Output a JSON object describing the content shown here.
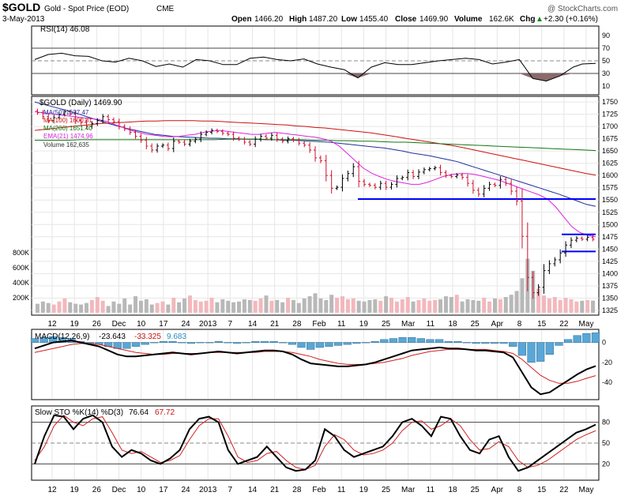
{
  "header": {
    "symbol": "$GOLD",
    "name": "Gold - Spot Price (EOD)",
    "exchange": "CME",
    "date": "3-May-2013",
    "watermark": "@ StockCharts.com",
    "open_label": "Open",
    "open": "1466.20",
    "high_label": "High",
    "high": "1487.20",
    "low_label": "Low",
    "low": "1455.40",
    "close_label": "Close",
    "close": "1469.90",
    "volume_label": "Volume",
    "volume": "162.6K",
    "chg_label": "Chg",
    "chg": "+2.30 (+0.16%)",
    "chg_arrow": "▲"
  },
  "x_axis_labels": [
    "12",
    "19",
    "26",
    "Dec",
    "10",
    "17",
    "24",
    "2013",
    "7",
    "14",
    "21",
    "28",
    "Feb",
    "11",
    "19",
    "25",
    "Mar",
    "11",
    "18",
    "25",
    "Apr",
    "8",
    "15",
    "22",
    "May"
  ],
  "chart_data": [
    {
      "type": "line",
      "panel": "rsi",
      "legend": "RSI(14) 46.08",
      "yticks": [
        10,
        30,
        50,
        70,
        90
      ],
      "ylim": [
        0,
        100
      ],
      "reference_lines": [
        30,
        50,
        70
      ],
      "x": [
        0,
        3,
        6,
        9,
        12,
        15,
        18,
        21,
        24,
        27,
        30,
        33,
        36,
        39,
        42,
        45,
        48,
        51,
        54,
        57,
        60,
        63,
        66,
        69,
        72,
        75,
        78,
        81,
        84,
        87,
        90,
        93,
        96,
        99,
        102,
        105,
        108,
        111,
        114,
        117,
        120,
        122,
        125
      ],
      "values": [
        52,
        60,
        62,
        58,
        57,
        50,
        48,
        54,
        50,
        41,
        45,
        40,
        52,
        50,
        44,
        44,
        54,
        56,
        52,
        50,
        53,
        45,
        40,
        36,
        23,
        40,
        47,
        44,
        44,
        47,
        50,
        52,
        54,
        52,
        45,
        48,
        52,
        22,
        18,
        26,
        40,
        45,
        46
      ]
    },
    {
      "type": "candlestick",
      "panel": "price",
      "legend": "$GOLD (Daily) 1469.90",
      "ylim": [
        1320,
        1755
      ],
      "yticks": [
        1325,
        1350,
        1375,
        1400,
        1425,
        1450,
        1475,
        1500,
        1525,
        1550,
        1575,
        1600,
        1625,
        1650,
        1675,
        1700,
        1725,
        1750
      ],
      "close": [
        1728,
        1720,
        1712,
        1718,
        1725,
        1730,
        1726,
        1712,
        1708,
        1700,
        1706,
        1712,
        1720,
        1714,
        1710,
        1700,
        1695,
        1688,
        1680,
        1672,
        1660,
        1652,
        1660,
        1662,
        1655,
        1670,
        1668,
        1664,
        1670,
        1674,
        1684,
        1688,
        1692,
        1690,
        1686,
        1684,
        1676,
        1674,
        1668,
        1664,
        1674,
        1680,
        1676,
        1682,
        1674,
        1670,
        1675,
        1672,
        1666,
        1662,
        1652,
        1636,
        1630,
        1600,
        1574,
        1576,
        1594,
        1604,
        1618,
        1588,
        1582,
        1580,
        1576,
        1584,
        1576,
        1582,
        1594,
        1596,
        1606,
        1598,
        1607,
        1612,
        1614,
        1616,
        1606,
        1600,
        1598,
        1601,
        1596,
        1584,
        1570,
        1562,
        1574,
        1582,
        1580,
        1592,
        1584,
        1568,
        1548,
        1476,
        1392,
        1361,
        1372,
        1406,
        1420,
        1428,
        1442,
        1458,
        1468,
        1472,
        1470,
        1474,
        1470
      ],
      "moving_averages": [
        {
          "name": "MA(50) 1537.47",
          "color": "#1f2f99",
          "values": [
            1750,
            1745,
            1740,
            1735,
            1730,
            1724,
            1718,
            1712,
            1706,
            1701,
            1696,
            1692,
            1688,
            1684,
            1682,
            1680,
            1679,
            1678,
            1677,
            1676,
            1676,
            1675,
            1675,
            1674,
            1674,
            1673,
            1673,
            1672,
            1672,
            1671,
            1670,
            1669,
            1668,
            1666,
            1664,
            1662,
            1660,
            1658,
            1656,
            1653,
            1650,
            1646,
            1643,
            1640,
            1636,
            1632,
            1628,
            1622,
            1616,
            1610,
            1604,
            1598,
            1592,
            1586,
            1580,
            1574,
            1568,
            1562,
            1555,
            1548,
            1541,
            1537
          ]
        },
        {
          "name": "MA(100) 1600.81",
          "color": "#cc1111",
          "values": [
            1692,
            1694,
            1696,
            1698,
            1700,
            1702,
            1704,
            1706,
            1707,
            1708,
            1709,
            1710,
            1711,
            1711,
            1712,
            1712,
            1712,
            1712,
            1711,
            1711,
            1710,
            1709,
            1708,
            1707,
            1706,
            1705,
            1704,
            1703,
            1701,
            1700,
            1698,
            1697,
            1695,
            1693,
            1691,
            1689,
            1687,
            1684,
            1681,
            1678,
            1675,
            1672,
            1669,
            1666,
            1663,
            1660,
            1656,
            1652,
            1648,
            1644,
            1640,
            1636,
            1632,
            1628,
            1624,
            1620,
            1616,
            1612,
            1608,
            1604,
            1601
          ]
        },
        {
          "name": "MA(200) 1651.40",
          "color": "#117711",
          "values": [
            1672,
            1672,
            1672,
            1672,
            1673,
            1673,
            1673,
            1673,
            1673,
            1673,
            1673,
            1673,
            1673,
            1673,
            1673,
            1673,
            1673,
            1674,
            1674,
            1674,
            1674,
            1673,
            1673,
            1673,
            1673,
            1672,
            1672,
            1671,
            1671,
            1670,
            1670,
            1669,
            1668,
            1668,
            1667,
            1666,
            1665,
            1664,
            1663,
            1662,
            1661,
            1660,
            1659,
            1658,
            1657,
            1656,
            1655,
            1654,
            1653,
            1652,
            1651
          ]
        },
        {
          "name": "EMA(21) 1474.96",
          "color": "#dd22dd",
          "values": [
            1730,
            1728,
            1726,
            1724,
            1722,
            1720,
            1718,
            1716,
            1714,
            1710,
            1704,
            1698,
            1692,
            1688,
            1684,
            1682,
            1680,
            1679,
            1680,
            1682,
            1684,
            1688,
            1690,
            1692,
            1690,
            1688,
            1686,
            1684,
            1684,
            1686,
            1688,
            1686,
            1684,
            1682,
            1680,
            1678,
            1675,
            1670,
            1660,
            1645,
            1630,
            1615,
            1605,
            1598,
            1592,
            1588,
            1585,
            1582,
            1582,
            1586,
            1592,
            1598,
            1602,
            1604,
            1604,
            1602,
            1598,
            1594,
            1590,
            1584,
            1578,
            1572,
            1566,
            1560,
            1552,
            1536,
            1516,
            1496,
            1484,
            1478,
            1475
          ]
        }
      ],
      "volume": {
        "legend": "Volume 162,635",
        "yticks": [
          "200K",
          "400K",
          "600K",
          "800K"
        ],
        "values": [
          120,
          150,
          130,
          110,
          150,
          190,
          140,
          120,
          110,
          130,
          170,
          210,
          160,
          90,
          150,
          120,
          190,
          110,
          220,
          160,
          180,
          110,
          130,
          150,
          110,
          200,
          140,
          190,
          230,
          170,
          150,
          160,
          200,
          140,
          180,
          160,
          140,
          150,
          180,
          170,
          160,
          190,
          230,
          160,
          170,
          140,
          200,
          170,
          130,
          190,
          220,
          260,
          190,
          170,
          240,
          200,
          220,
          180,
          190,
          160,
          150,
          170,
          180,
          160,
          220,
          200,
          150,
          180,
          210,
          150,
          170,
          190,
          160,
          170,
          180,
          220,
          210,
          240,
          150,
          180,
          170,
          160,
          200,
          150,
          190,
          180,
          210,
          240,
          290,
          460,
          720,
          560,
          320,
          230,
          190,
          210,
          170,
          200,
          180,
          150,
          160,
          170,
          162
        ],
        "up_color": "#f2b8bd",
        "down_color": "#b8b8b8"
      },
      "horizontal_lines": [
        {
          "value": 1552,
          "color": "#0000ff"
        },
        {
          "value": 1480,
          "color": "#0000ff"
        },
        {
          "value": 1445,
          "color": "#0000ff"
        }
      ]
    },
    {
      "type": "line",
      "panel": "macd",
      "legend_label": "MACD(12,26,9)",
      "legend_macd": "-23.643",
      "legend_signal": "-33.325",
      "legend_hist": "9.683",
      "yticks": [
        0,
        -20,
        -40
      ],
      "ylim": [
        -55,
        10
      ],
      "macd": [
        -6,
        -3,
        0,
        1,
        2,
        0,
        -2,
        -4,
        -8,
        -12,
        -14,
        -14,
        -13,
        -12,
        -11,
        -10,
        -11,
        -12,
        -11,
        -10,
        -9,
        -10,
        -11,
        -10,
        -9,
        -8,
        -8,
        -9,
        -12,
        -17,
        -21,
        -22,
        -23,
        -24,
        -24,
        -23,
        -22,
        -20,
        -17,
        -14,
        -11,
        -8,
        -7,
        -6,
        -5,
        -6,
        -6,
        -7,
        -8,
        -8,
        -9,
        -10,
        -15,
        -30,
        -45,
        -52,
        -50,
        -44,
        -38,
        -32,
        -27,
        -23.6
      ],
      "signal": [
        -10,
        -8,
        -6,
        -4,
        -2,
        -1,
        -1,
        -2,
        -4,
        -6,
        -8,
        -10,
        -11,
        -12,
        -12,
        -11,
        -11,
        -11,
        -11,
        -10,
        -10,
        -10,
        -10,
        -10,
        -10,
        -9,
        -9,
        -9,
        -10,
        -12,
        -14,
        -17,
        -19,
        -21,
        -22,
        -22,
        -22,
        -21,
        -20,
        -18,
        -16,
        -13,
        -11,
        -9,
        -8,
        -7,
        -7,
        -7,
        -7,
        -7,
        -8,
        -9,
        -11,
        -17,
        -25,
        -33,
        -38,
        -41,
        -41,
        -39,
        -36,
        -33.3
      ],
      "histogram": [
        4,
        5,
        6,
        5,
        4,
        1,
        -1,
        -2,
        -4,
        -6,
        -6,
        -4,
        -2,
        0,
        1,
        1,
        0,
        -1,
        0,
        0,
        1,
        0,
        -1,
        0,
        1,
        1,
        1,
        0,
        -2,
        -5,
        -7,
        -5,
        -4,
        -3,
        -2,
        -1,
        0,
        1,
        3,
        4,
        5,
        5,
        4,
        3,
        3,
        1,
        1,
        0,
        -1,
        -1,
        -1,
        -1,
        -4,
        -13,
        -20,
        -19,
        -12,
        -3,
        3,
        7,
        9,
        9.7
      ]
    },
    {
      "type": "line",
      "panel": "stochastic",
      "legend_label": "Slow STO %K(14) %D(3)",
      "legend_k": "76.64",
      "legend_d": "67.72",
      "yticks": [
        20,
        50,
        80
      ],
      "ylim": [
        0,
        100
      ],
      "reference_lines": [
        20,
        50,
        80
      ],
      "k": [
        20,
        60,
        90,
        88,
        70,
        85,
        90,
        80,
        45,
        30,
        40,
        35,
        25,
        20,
        28,
        40,
        70,
        85,
        88,
        80,
        40,
        20,
        25,
        30,
        45,
        30,
        15,
        10,
        12,
        25,
        70,
        60,
        40,
        30,
        35,
        40,
        45,
        60,
        80,
        85,
        75,
        60,
        88,
        85,
        60,
        40,
        35,
        55,
        60,
        30,
        10,
        15,
        25,
        35,
        45,
        55,
        65,
        70,
        76.6
      ],
      "d": [
        25,
        45,
        75,
        90,
        80,
        75,
        85,
        88,
        65,
        40,
        35,
        38,
        30,
        22,
        25,
        32,
        55,
        75,
        85,
        85,
        60,
        30,
        22,
        25,
        35,
        38,
        25,
        15,
        12,
        18,
        45,
        62,
        55,
        40,
        33,
        35,
        40,
        50,
        68,
        80,
        82,
        70,
        75,
        85,
        75,
        55,
        40,
        42,
        52,
        45,
        25,
        15,
        18,
        25,
        35,
        45,
        55,
        62,
        67.7
      ]
    }
  ]
}
